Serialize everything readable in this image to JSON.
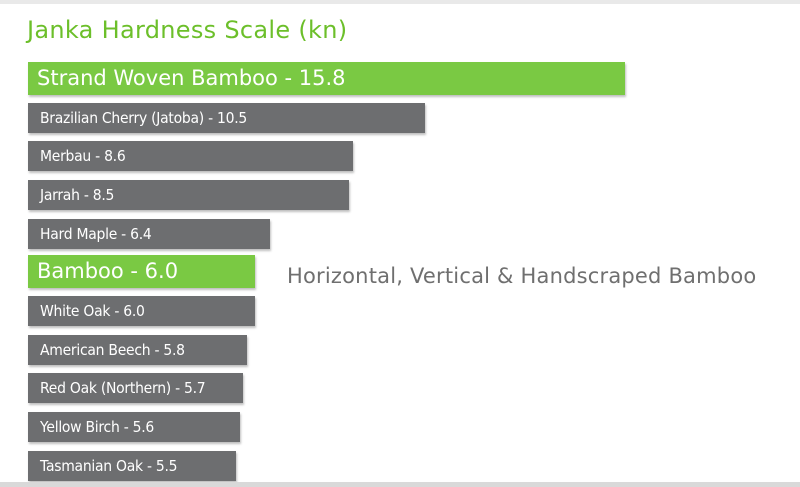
{
  "colors": {
    "accent_green": "#7ac943",
    "bar_gray": "#6d6e70",
    "title_green": "#6cbf2a",
    "annotation_gray": "#6f6f6f"
  },
  "chart_data": {
    "type": "bar",
    "orientation": "horizontal",
    "title": "Janka Hardness Scale (kn)",
    "xlim": [
      0,
      16
    ],
    "grid": false,
    "legend": "none",
    "bars": [
      {
        "category": "Strand Woven Bamboo",
        "value": 15.8,
        "label": "Strand Woven Bamboo - 15.8",
        "highlight": true
      },
      {
        "category": "Brazilian Cherry (Jatoba)",
        "value": 10.5,
        "label": "Brazilian Cherry (Jatoba) - 10.5",
        "highlight": false
      },
      {
        "category": "Merbau",
        "value": 8.6,
        "label": "Merbau - 8.6",
        "highlight": false
      },
      {
        "category": "Jarrah",
        "value": 8.5,
        "label": "Jarrah - 8.5",
        "highlight": false
      },
      {
        "category": "Hard Maple",
        "value": 6.4,
        "label": "Hard Maple - 6.4",
        "highlight": false
      },
      {
        "category": "Bamboo",
        "value": 6.0,
        "label": "Bamboo - 6.0",
        "highlight": true
      },
      {
        "category": "White Oak",
        "value": 6.0,
        "label": "White Oak - 6.0",
        "highlight": false
      },
      {
        "category": "American Beech",
        "value": 5.8,
        "label": "American Beech - 5.8",
        "highlight": false
      },
      {
        "category": "Red Oak (Northern)",
        "value": 5.7,
        "label": "Red Oak (Northern) - 5.7",
        "highlight": false
      },
      {
        "category": "Yellow Birch",
        "value": 5.6,
        "label": "Yellow Birch - 5.6",
        "highlight": false
      },
      {
        "category": "Tasmanian Oak",
        "value": 5.5,
        "label": "Tasmanian Oak - 5.5",
        "highlight": false
      }
    ],
    "annotations": [
      {
        "text": "Horizontal, Vertical & Handscraped Bamboo",
        "category": "Bamboo"
      }
    ]
  }
}
